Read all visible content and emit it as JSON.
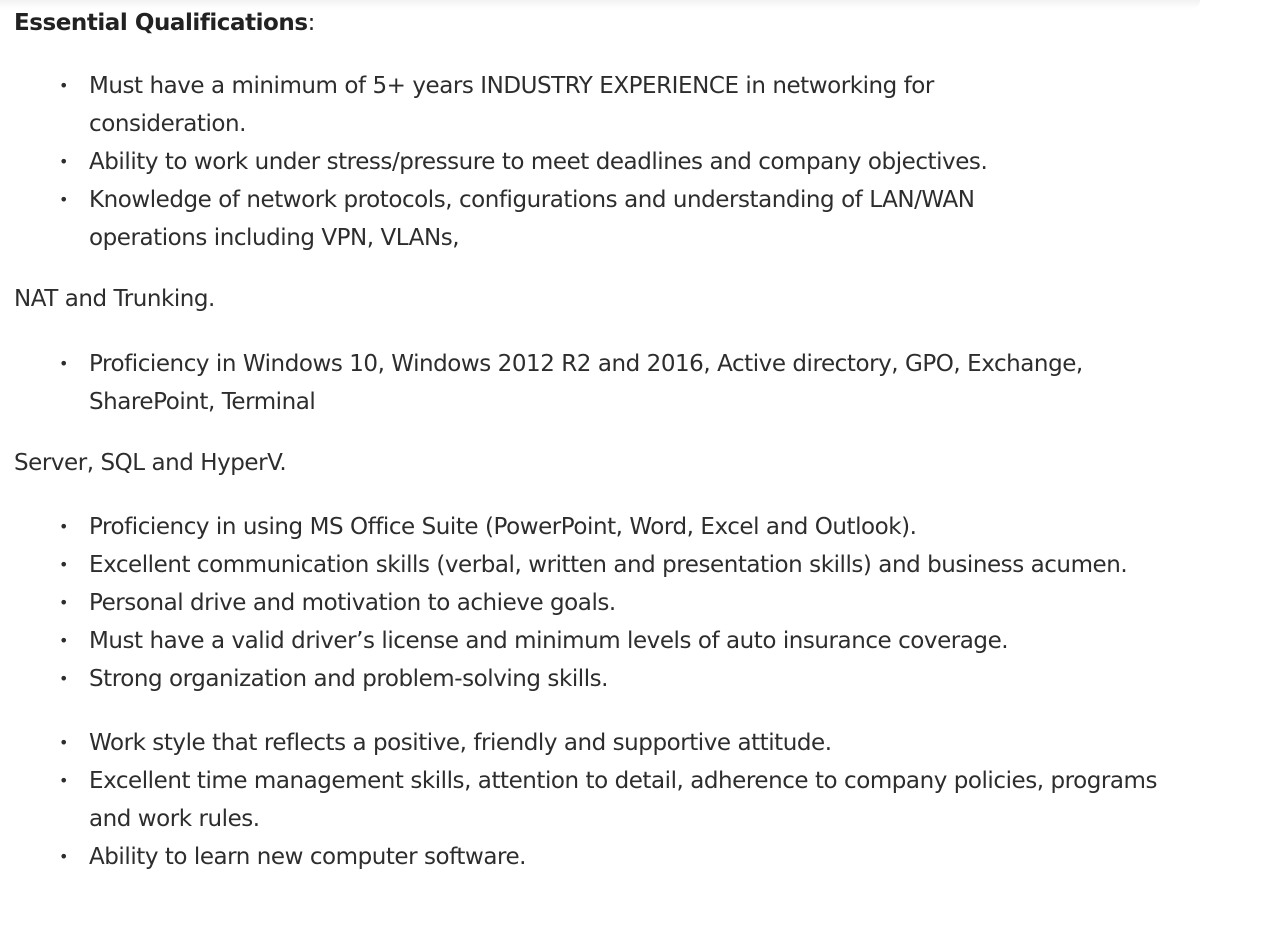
{
  "section": {
    "heading": "Essential Qualifications",
    "heading_suffix": ":"
  },
  "list_1": [
    "Must have a minimum of 5+ years INDUSTRY EXPERIENCE in networking for consideration.",
    "Ability to work under stress/pressure to meet deadlines and company objectives.",
    "Knowledge of network protocols, configurations and understanding of LAN/WAN operations including VPN, VLANs,"
  ],
  "continuation_1": "NAT and Trunking.",
  "list_2": [
    "Proficiency in Windows 10, Windows 2012 R2 and 2016, Active directory, GPO, Exchange, SharePoint, Terminal"
  ],
  "continuation_2": "Server, SQL and HyperV.",
  "list_3": [
    "Proficiency in using MS Office Suite (PowerPoint, Word, Excel and Outlook).",
    "Excellent communication skills (verbal, written and presentation skills) and business acumen.",
    "Personal drive and motivation to achieve goals.",
    "Must have a valid driver’s license and minimum levels of auto insurance coverage.",
    "Strong organization and problem-solving skills."
  ],
  "list_4": [
    "Work style that reflects a positive, friendly and supportive attitude.",
    "Excellent time management skills, attention to detail, adherence to company policies, programs and work rules.",
    "Ability to learn new computer software."
  ],
  "bullet_glyph": "•"
}
